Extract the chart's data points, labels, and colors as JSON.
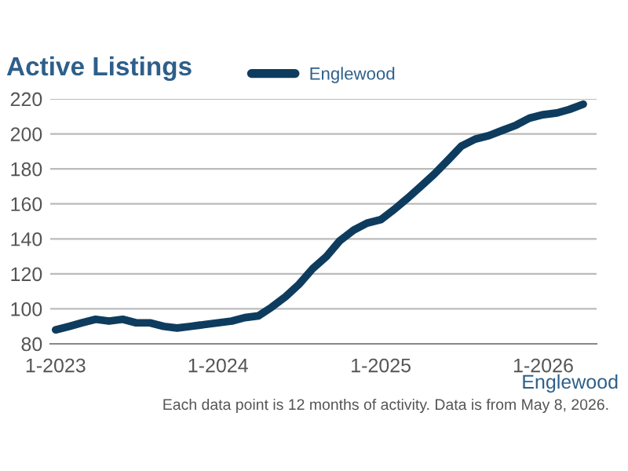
{
  "chart_data": {
    "type": "line",
    "title": "Active Listings",
    "x": [
      "2023-01",
      "2023-02",
      "2023-03",
      "2023-04",
      "2023-05",
      "2023-06",
      "2023-07",
      "2023-08",
      "2023-09",
      "2023-10",
      "2023-11",
      "2023-12",
      "2024-01",
      "2024-02",
      "2024-03",
      "2024-04",
      "2024-05",
      "2024-06",
      "2024-07",
      "2024-08",
      "2024-09",
      "2024-10",
      "2024-11",
      "2024-12",
      "2025-01",
      "2025-02",
      "2025-03",
      "2025-04",
      "2025-05",
      "2025-06",
      "2025-07",
      "2025-08",
      "2025-09",
      "2025-10",
      "2025-11",
      "2025-12",
      "2026-01",
      "2026-02",
      "2026-03",
      "2026-04"
    ],
    "series": [
      {
        "name": "Englewood",
        "color": "#0d3c5e",
        "values": [
          88,
          90,
          92,
          94,
          93,
          94,
          92,
          92,
          90,
          89,
          90,
          91,
          92,
          93,
          95,
          96,
          101,
          107,
          114,
          123,
          130,
          139,
          145,
          149,
          151,
          157,
          163,
          170,
          177,
          185,
          193,
          197,
          199,
          202,
          205,
          209,
          211,
          212,
          214,
          217
        ]
      }
    ],
    "xlim": [
      "2022-12-20",
      "2026-05-01"
    ],
    "xticks": [
      {
        "value": "2023-01",
        "label": "1-2023"
      },
      {
        "value": "2024-01",
        "label": "1-2024"
      },
      {
        "value": "2025-01",
        "label": "1-2025"
      },
      {
        "value": "2026-01",
        "label": "1-2026"
      }
    ],
    "ylim": [
      80,
      220
    ],
    "yticks": [
      80,
      100,
      120,
      140,
      160,
      180,
      200,
      220
    ],
    "grid": "y",
    "legend": "top",
    "marker": "none",
    "line_style": "solid",
    "annotations": [
      "Englewood",
      "Each data point is 12 months of activity. Data is from May 8, 2026."
    ]
  }
}
